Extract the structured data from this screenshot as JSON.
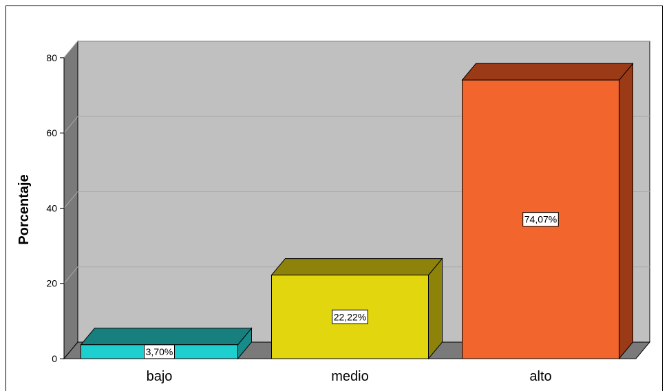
{
  "chart_data": {
    "type": "bar",
    "title": "",
    "xlabel": "",
    "ylabel": "Porcentaje",
    "categories": [
      "bajo",
      "medio",
      "alto"
    ],
    "values": [
      3.7,
      22.22,
      74.07
    ],
    "data_labels": [
      "3,70%",
      "22,22%",
      "74,07%"
    ],
    "ylim": [
      0,
      80
    ],
    "yticks": [
      0,
      20,
      40,
      60,
      80
    ],
    "grid": true,
    "legend": "none",
    "three_d": true,
    "colors": {
      "bars": [
        {
          "front": "#1ecfcf",
          "top": "#17807f",
          "side": "#178a8a"
        },
        {
          "front": "#e2d60e",
          "top": "#8e830a",
          "side": "#8e830a"
        },
        {
          "front": "#f2652c",
          "top": "#9a3a17",
          "side": "#9a3a17"
        }
      ],
      "back_wall": "#c0c0c0",
      "side_wall": "#7a7a7a",
      "floor": "#7a7a7a",
      "gridline": "#a9a9a9"
    }
  }
}
